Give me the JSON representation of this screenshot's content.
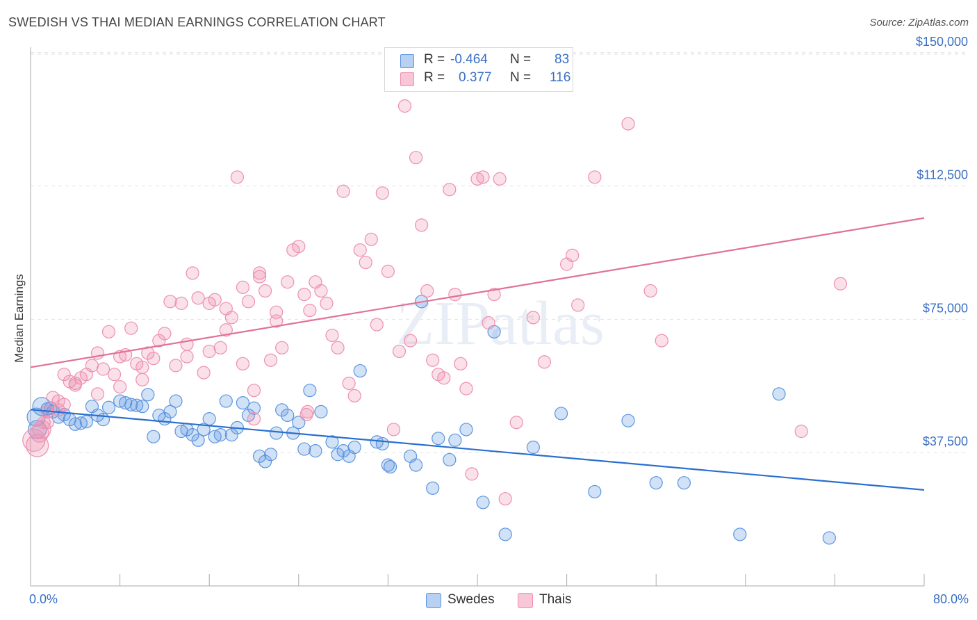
{
  "title": "SWEDISH VS THAI MEDIAN EARNINGS CORRELATION CHART",
  "source": "Source: ZipAtlas.com",
  "watermark": "ZIPatlas",
  "legend": {
    "rows": [
      {
        "r_label": "R =",
        "r_value": "-0.464",
        "n_label": "N =",
        "n_value": "83"
      },
      {
        "r_label": "R =",
        "r_value": "0.377",
        "n_label": "N =",
        "n_value": "116"
      }
    ]
  },
  "bottom_legend": [
    {
      "label": "Swedes"
    },
    {
      "label": "Thais"
    }
  ],
  "x_axis": {
    "min_label": "0.0%",
    "max_label": "80.0%"
  },
  "chart_data": {
    "type": "scatter",
    "title": "SWEDISH VS THAI MEDIAN EARNINGS CORRELATION CHART",
    "xlabel": "",
    "ylabel": "Median Earnings",
    "xlim": [
      0,
      80
    ],
    "ylim": [
      0,
      157000
    ],
    "y_ticks": [
      37500,
      75000,
      112500,
      150000
    ],
    "y_tick_labels": [
      "$37,500",
      "$75,000",
      "$112,500",
      "$150,000"
    ],
    "grid": true,
    "legend_position": "top-center",
    "colors": {
      "swedes": "#5b95e0",
      "thais": "#ee8fb0",
      "swedes_line": "#2a6fcf",
      "thais_line": "#e0719a"
    },
    "series": [
      {
        "name": "Swedes",
        "r": -0.464,
        "n": 83,
        "trend": [
          [
            0,
            49600
          ],
          [
            80,
            27000
          ]
        ],
        "points": [
          [
            0.5,
            47500
          ],
          [
            1.0,
            50500
          ],
          [
            1.5,
            49800
          ],
          [
            2.0,
            49000
          ],
          [
            2.5,
            47500
          ],
          [
            3.0,
            48200
          ],
          [
            3.5,
            46800
          ],
          [
            4.0,
            45500
          ],
          [
            4.5,
            45800
          ],
          [
            5.0,
            46200
          ],
          [
            5.5,
            50500
          ],
          [
            6.0,
            48000
          ],
          [
            6.5,
            46800
          ],
          [
            7.0,
            50200
          ],
          [
            8.0,
            52000
          ],
          [
            8.5,
            51500
          ],
          [
            9.0,
            51000
          ],
          [
            9.5,
            50800
          ],
          [
            10.0,
            50500
          ],
          [
            10.5,
            53800
          ],
          [
            11.0,
            42000
          ],
          [
            11.5,
            48000
          ],
          [
            12.0,
            47000
          ],
          [
            12.5,
            49000
          ],
          [
            13.0,
            52000
          ],
          [
            13.5,
            43500
          ],
          [
            14.0,
            44000
          ],
          [
            14.5,
            42500
          ],
          [
            15.0,
            41000
          ],
          [
            15.5,
            44000
          ],
          [
            16.0,
            47000
          ],
          [
            16.5,
            42000
          ],
          [
            17.0,
            42500
          ],
          [
            17.5,
            52000
          ],
          [
            18.0,
            42500
          ],
          [
            18.5,
            44500
          ],
          [
            19.0,
            51500
          ],
          [
            19.5,
            48000
          ],
          [
            20.0,
            50000
          ],
          [
            20.5,
            36500
          ],
          [
            21.0,
            35000
          ],
          [
            21.5,
            37000
          ],
          [
            22.0,
            43000
          ],
          [
            22.5,
            49500
          ],
          [
            23.0,
            48000
          ],
          [
            23.5,
            43000
          ],
          [
            24.0,
            46000
          ],
          [
            24.5,
            38500
          ],
          [
            25.0,
            55000
          ],
          [
            25.5,
            38000
          ],
          [
            26.0,
            49000
          ],
          [
            27.0,
            40500
          ],
          [
            27.5,
            37000
          ],
          [
            28.0,
            38000
          ],
          [
            28.5,
            36500
          ],
          [
            29.0,
            39000
          ],
          [
            29.5,
            60500
          ],
          [
            31.0,
            40500
          ],
          [
            31.5,
            40000
          ],
          [
            32.0,
            34000
          ],
          [
            32.2,
            33500
          ],
          [
            34.0,
            36500
          ],
          [
            34.5,
            34000
          ],
          [
            35.0,
            80000
          ],
          [
            36.0,
            27500
          ],
          [
            36.5,
            41500
          ],
          [
            37.5,
            35500
          ],
          [
            38.0,
            41000
          ],
          [
            39.0,
            44000
          ],
          [
            40.5,
            23500
          ],
          [
            41.5,
            71500
          ],
          [
            42.5,
            14500
          ],
          [
            45.0,
            39000
          ],
          [
            47.5,
            48500
          ],
          [
            50.5,
            26500
          ],
          [
            53.5,
            46500
          ],
          [
            56.0,
            29000
          ],
          [
            58.5,
            29000
          ],
          [
            63.5,
            14500
          ],
          [
            67.0,
            54000
          ],
          [
            71.5,
            13500
          ],
          [
            0.6,
            44000
          ],
          [
            1.8,
            50000
          ]
        ]
      },
      {
        "name": "Thais",
        "r": 0.377,
        "n": 116,
        "trend": [
          [
            0,
            61500
          ],
          [
            80,
            103500
          ]
        ],
        "points": [
          [
            0.3,
            41000
          ],
          [
            0.6,
            39500
          ],
          [
            1.0,
            44000
          ],
          [
            1.2,
            46000
          ],
          [
            1.5,
            49000
          ],
          [
            2.0,
            53000
          ],
          [
            2.5,
            52000
          ],
          [
            3.0,
            59500
          ],
          [
            3.5,
            57500
          ],
          [
            4.0,
            56500
          ],
          [
            4.5,
            58500
          ],
          [
            5.0,
            59500
          ],
          [
            5.5,
            62000
          ],
          [
            6.0,
            65500
          ],
          [
            6.5,
            61000
          ],
          [
            7.0,
            71500
          ],
          [
            7.5,
            59500
          ],
          [
            8.0,
            64500
          ],
          [
            8.5,
            65000
          ],
          [
            9.0,
            72500
          ],
          [
            9.5,
            62500
          ],
          [
            10.0,
            61500
          ],
          [
            10.5,
            65500
          ],
          [
            11.0,
            64000
          ],
          [
            11.5,
            69000
          ],
          [
            12.0,
            71000
          ],
          [
            12.5,
            80000
          ],
          [
            13.0,
            62000
          ],
          [
            13.5,
            79500
          ],
          [
            14.0,
            64500
          ],
          [
            14.5,
            88000
          ],
          [
            15.0,
            81000
          ],
          [
            15.5,
            60000
          ],
          [
            16.0,
            79500
          ],
          [
            16.5,
            80500
          ],
          [
            17.0,
            67000
          ],
          [
            17.5,
            78000
          ],
          [
            18.0,
            75500
          ],
          [
            18.5,
            115000
          ],
          [
            19.0,
            62500
          ],
          [
            19.5,
            80000
          ],
          [
            20.0,
            55000
          ],
          [
            20.5,
            87000
          ],
          [
            21.0,
            83000
          ],
          [
            21.5,
            63500
          ],
          [
            22.0,
            74500
          ],
          [
            22.5,
            67000
          ],
          [
            23.0,
            85500
          ],
          [
            23.5,
            94500
          ],
          [
            24.0,
            95500
          ],
          [
            24.5,
            82000
          ],
          [
            25.0,
            77500
          ],
          [
            25.5,
            85500
          ],
          [
            26.0,
            83000
          ],
          [
            26.5,
            79500
          ],
          [
            27.0,
            70500
          ],
          [
            27.5,
            67000
          ],
          [
            28.0,
            111000
          ],
          [
            28.5,
            57000
          ],
          [
            29.0,
            53500
          ],
          [
            29.5,
            94500
          ],
          [
            30.0,
            91000
          ],
          [
            30.5,
            97500
          ],
          [
            31.0,
            73500
          ],
          [
            31.5,
            110500
          ],
          [
            32.0,
            88500
          ],
          [
            32.5,
            44000
          ],
          [
            33.0,
            66000
          ],
          [
            33.5,
            135000
          ],
          [
            34.0,
            69000
          ],
          [
            34.5,
            120500
          ],
          [
            35.0,
            101500
          ],
          [
            35.5,
            83000
          ],
          [
            36.0,
            63500
          ],
          [
            36.5,
            59500
          ],
          [
            37.0,
            58500
          ],
          [
            37.5,
            111500
          ],
          [
            38.0,
            82000
          ],
          [
            38.5,
            62500
          ],
          [
            39.0,
            55500
          ],
          [
            39.5,
            31500
          ],
          [
            40.0,
            114500
          ],
          [
            40.5,
            115000
          ],
          [
            41.0,
            74000
          ],
          [
            41.5,
            82000
          ],
          [
            42.0,
            114500
          ],
          [
            42.5,
            24500
          ],
          [
            43.5,
            46000
          ],
          [
            45.0,
            75500
          ],
          [
            46.0,
            63000
          ],
          [
            48.0,
            90500
          ],
          [
            48.5,
            93000
          ],
          [
            49.0,
            79000
          ],
          [
            50.5,
            115000
          ],
          [
            53.5,
            130000
          ],
          [
            55.5,
            83000
          ],
          [
            56.5,
            69000
          ],
          [
            69.0,
            43500
          ],
          [
            72.5,
            85000
          ],
          [
            24.8,
            49000
          ],
          [
            24.7,
            48200
          ],
          [
            20.5,
            88000
          ],
          [
            19.0,
            84000
          ],
          [
            22.0,
            77000
          ],
          [
            20.0,
            47000
          ],
          [
            17.5,
            72000
          ],
          [
            16.0,
            66000
          ],
          [
            14.0,
            68000
          ],
          [
            10.0,
            58000
          ],
          [
            8.0,
            56000
          ],
          [
            6.0,
            54000
          ],
          [
            4.0,
            57000
          ],
          [
            3.0,
            51000
          ],
          [
            2.5,
            49500
          ],
          [
            1.5,
            46000
          ],
          [
            0.8,
            43000
          ]
        ]
      }
    ]
  }
}
